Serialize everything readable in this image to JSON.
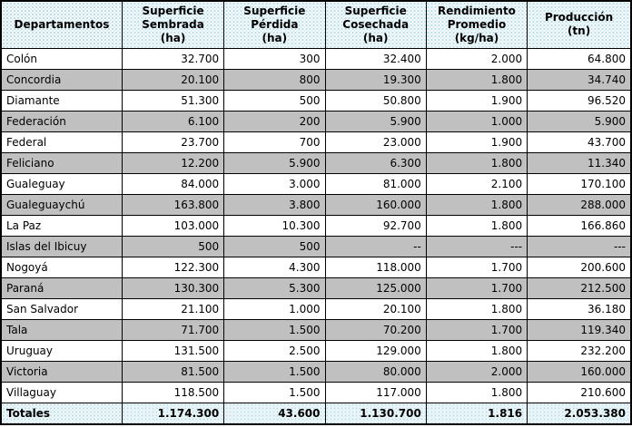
{
  "chart_data": {
    "type": "table",
    "columns": [
      "Departamentos",
      "Superficie Sembrada (ha)",
      "Superficie Pérdida (ha)",
      "Superficie Cosechada (ha)",
      "Rendimiento Promedio (kg/ha)",
      "Producción (tn)"
    ],
    "headers_display": [
      "Departamentos",
      "Superficie\nSembrada\n(ha)",
      "Superficie\nPérdida\n(ha)",
      "Superficie\nCosechada\n(ha)",
      "Rendimiento\nPromedio\n(kg/ha)",
      "Producción\n(tn)"
    ],
    "rows": [
      {
        "name": "Colón",
        "values": [
          "32.700",
          "300",
          "32.400",
          "2.000",
          "64.800"
        ]
      },
      {
        "name": "Concordia",
        "values": [
          "20.100",
          "800",
          "19.300",
          "1.800",
          "34.740"
        ]
      },
      {
        "name": "Diamante",
        "values": [
          "51.300",
          "500",
          "50.800",
          "1.900",
          "96.520"
        ]
      },
      {
        "name": "Federación",
        "values": [
          "6.100",
          "200",
          "5.900",
          "1.000",
          "5.900"
        ]
      },
      {
        "name": "Federal",
        "values": [
          "23.700",
          "700",
          "23.000",
          "1.900",
          "43.700"
        ]
      },
      {
        "name": "Feliciano",
        "values": [
          "12.200",
          "5.900",
          "6.300",
          "1.800",
          "11.340"
        ]
      },
      {
        "name": "Gualeguay",
        "values": [
          "84.000",
          "3.000",
          "81.000",
          "2.100",
          "170.100"
        ]
      },
      {
        "name": "Gualeguaychú",
        "values": [
          "163.800",
          "3.800",
          "160.000",
          "1.800",
          "288.000"
        ]
      },
      {
        "name": "La Paz",
        "values": [
          "103.000",
          "10.300",
          "92.700",
          "1.800",
          "166.860"
        ]
      },
      {
        "name": "Islas del Ibicuy",
        "values": [
          "500",
          "500",
          "--",
          "---",
          "---"
        ]
      },
      {
        "name": "Nogoyá",
        "values": [
          "122.300",
          "4.300",
          "118.000",
          "1.700",
          "200.600"
        ]
      },
      {
        "name": "Paraná",
        "values": [
          "130.300",
          "5.300",
          "125.000",
          "1.700",
          "212.500"
        ]
      },
      {
        "name": "San Salvador",
        "values": [
          "21.100",
          "1.000",
          "20.100",
          "1.800",
          "36.180"
        ]
      },
      {
        "name": "Tala",
        "values": [
          "71.700",
          "1.500",
          "70.200",
          "1.700",
          "119.340"
        ]
      },
      {
        "name": "Uruguay",
        "values": [
          "131.500",
          "2.500",
          "129.000",
          "1.800",
          "232.200"
        ]
      },
      {
        "name": "Victoria",
        "values": [
          "81.500",
          "1.500",
          "80.000",
          "2.000",
          "160.000"
        ]
      },
      {
        "name": "Villaguay",
        "values": [
          "118.500",
          "1.500",
          "117.000",
          "1.800",
          "210.600"
        ]
      }
    ],
    "totals": {
      "name": "Totales",
      "values": [
        "1.174.300",
        "43.600",
        "1.130.700",
        "1.816",
        "2.053.380"
      ]
    }
  },
  "colors": {
    "alt_row_bg": "#c0c0c0",
    "header_dot": "#b8dee9",
    "border": "#000000",
    "text": "#000000"
  }
}
